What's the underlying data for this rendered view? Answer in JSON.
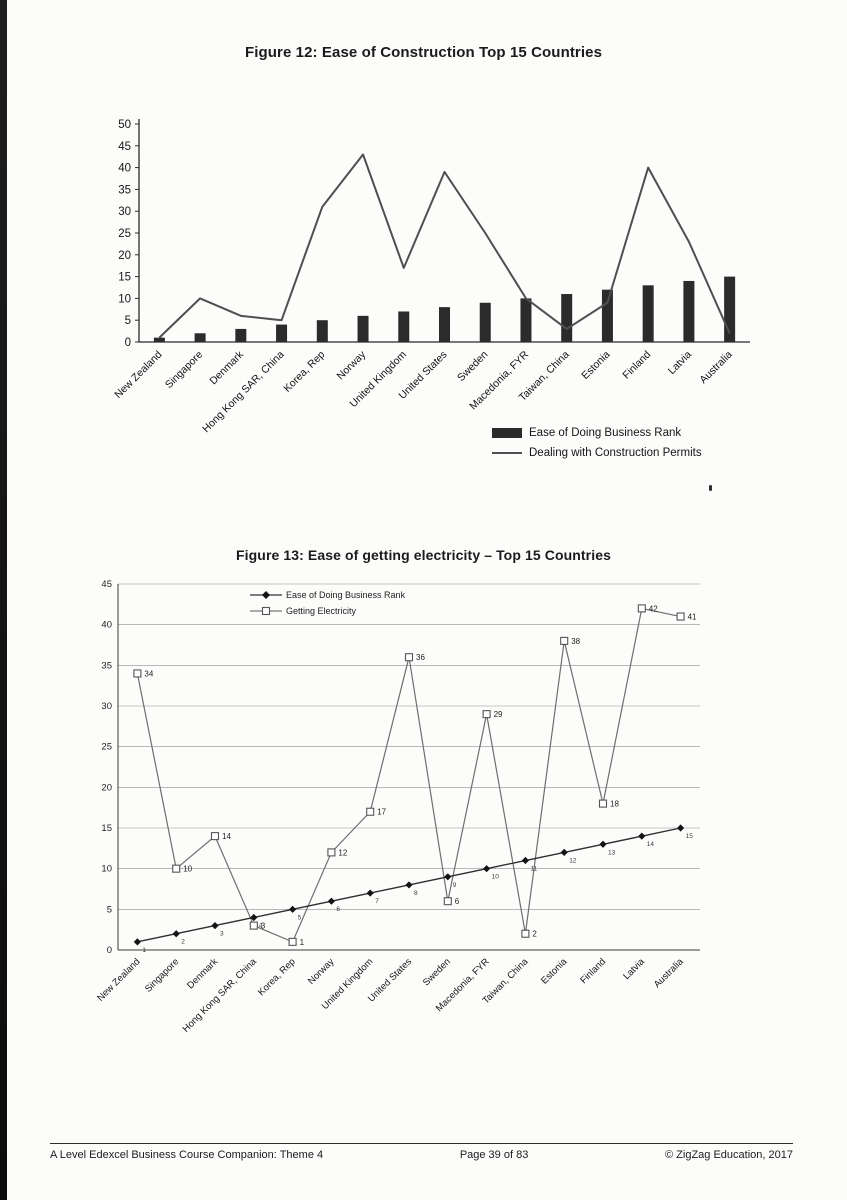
{
  "page": {
    "footer_left": "A Level Edexcel Business Course Companion: Theme 4",
    "footer_center": "Page 39 of 83",
    "footer_right": "© ZigZag Education, 2017"
  },
  "figure12": {
    "title": "Figure 12: Ease of Construction Top 15 Countries",
    "legend": [
      "Ease of Doing Business Rank",
      "Dealing with Construction Permits"
    ]
  },
  "figure13": {
    "title": "Figure 13: Ease of getting electricity – Top 15 Countries",
    "legend": [
      "Ease of Doing Business Rank",
      "Getting Electricity"
    ]
  },
  "chart_data": [
    {
      "type": "bar",
      "subtype": "bar + line combo",
      "title": "Figure 12: Ease of Construction Top 15 Countries",
      "categories": [
        "New Zealand",
        "Singapore",
        "Denmark",
        "Hong Kong SAR, China",
        "Korea, Rep",
        "Norway",
        "United Kingdom",
        "United States",
        "Sweden",
        "Macedonia, FYR",
        "Taiwan, China",
        "Estonia",
        "Finland",
        "Latvia",
        "Australia"
      ],
      "series": [
        {
          "name": "Ease of Doing Business Rank",
          "style": "bar",
          "color": "#2b2b2b",
          "values": [
            1,
            2,
            3,
            4,
            5,
            6,
            7,
            8,
            9,
            10,
            11,
            12,
            13,
            14,
            15
          ]
        },
        {
          "name": "Dealing with Construction Permits",
          "style": "line",
          "color": "#4f4f4f",
          "values": [
            1,
            10,
            6,
            5,
            31,
            43,
            17,
            39,
            25,
            10,
            3,
            9,
            40,
            23,
            2
          ]
        }
      ],
      "xlabel": "",
      "ylabel": "",
      "ylim": [
        0,
        50
      ],
      "ytick_step": 5,
      "grid": false,
      "legend_position": "bottom-right"
    },
    {
      "type": "line",
      "title": "Figure 13: Ease of getting electricity – Top 15 Countries",
      "categories": [
        "New Zealand",
        "Singapore",
        "Denmark",
        "Hong Kong SAR, China",
        "Korea, Rep",
        "Norway",
        "United Kingdom",
        "United States",
        "Sweden",
        "Macedonia, FYR",
        "Taiwan, China",
        "Estonia",
        "Finland",
        "Latvia",
        "Australia"
      ],
      "series": [
        {
          "name": "Ease of Doing Business Rank",
          "marker": "diamond",
          "color": "#2f2f2f",
          "data_labels": true,
          "values": [
            1,
            2,
            3,
            4,
            5,
            6,
            7,
            8,
            9,
            10,
            11,
            12,
            13,
            14,
            15
          ]
        },
        {
          "name": "Getting Electricity",
          "marker": "open-square",
          "color": "#6e6e6e",
          "data_labels": true,
          "values": [
            34,
            10,
            14,
            3,
            1,
            12,
            17,
            36,
            6,
            29,
            2,
            38,
            18,
            42,
            41
          ]
        }
      ],
      "xlabel": "",
      "ylabel": "",
      "ylim": [
        0,
        45
      ],
      "ytick_step": 5,
      "grid": true,
      "legend_position": "top-left"
    }
  ]
}
